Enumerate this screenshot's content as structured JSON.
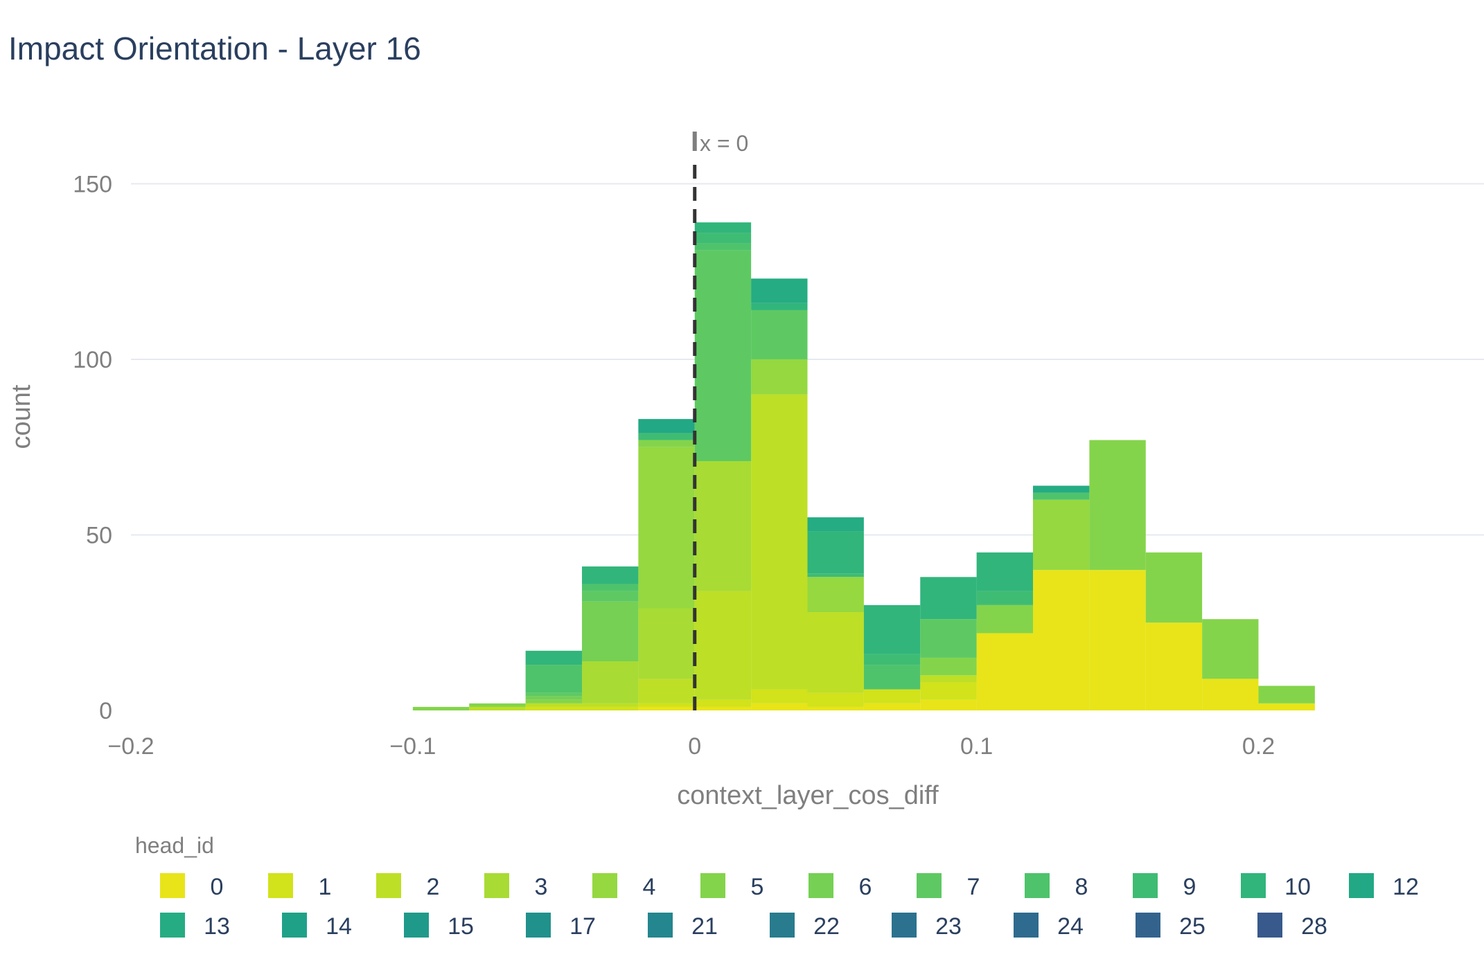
{
  "colors": {
    "palette": {
      "0": "#e8e419",
      "1": "#d2e21b",
      "2": "#bddf26",
      "3": "#a8db34",
      "4": "#95d840",
      "5": "#84d44b",
      "6": "#75d054",
      "7": "#5ec962",
      "8": "#4ec36b",
      "9": "#3fbc73",
      "10": "#31b57b",
      "12": "#22a884",
      "13": "#25ac82",
      "14": "#1fa188",
      "15": "#1f9a8a",
      "17": "#21918c",
      "21": "#24868e",
      "22": "#287c8e",
      "23": "#2c728e",
      "24": "#2f6b8e",
      "25": "#33638d",
      "28": "#38598c"
    },
    "grid": "#e6e9f0",
    "axis_text": "#7f7f7f",
    "title_text": "#2a3f5f",
    "refline": "#333333"
  },
  "chart_data": {
    "type": "bar",
    "title": "Impact Orientation - Layer 16",
    "xlabel": "context_layer_cos_diff",
    "ylabel": "count",
    "barmode": "stack",
    "bin_width": 0.02,
    "xlim": [
      -0.2,
      0.28
    ],
    "ylim": [
      0,
      170
    ],
    "x_ticks": [
      -0.2,
      -0.1,
      0,
      0.1,
      0.2
    ],
    "x_tick_labels": [
      "−0.2",
      "−0.1",
      "0",
      "0.1",
      "0.2"
    ],
    "y_ticks": [
      0,
      50,
      100,
      150
    ],
    "y_tick_labels": [
      "0",
      "50",
      "100",
      "150"
    ],
    "grid": true,
    "legend": {
      "title": "head_id",
      "position": "bottom"
    },
    "annotation": {
      "text": "x = 0",
      "x": 0
    },
    "bin_starts": [
      -0.2,
      -0.18,
      -0.16,
      -0.14,
      -0.12,
      -0.1,
      -0.08,
      -0.06,
      -0.04,
      -0.02,
      0,
      0.02,
      0.04,
      0.06,
      0.08,
      0.1,
      0.12,
      0.14,
      0.16,
      0.18,
      0.2,
      0.22,
      0.24,
      0.26
    ],
    "series": [
      {
        "name": "0",
        "values": [
          0,
          0,
          0,
          0,
          0,
          0,
          0,
          0,
          0,
          1,
          1,
          2,
          1,
          2,
          3,
          22,
          40,
          40,
          25,
          9,
          2,
          0,
          0,
          0
        ]
      },
      {
        "name": "1",
        "values": [
          0,
          0,
          0,
          0,
          0,
          0,
          0,
          1,
          1,
          1,
          2,
          4,
          4,
          4,
          5,
          0,
          0,
          0,
          0,
          0,
          0,
          0,
          0,
          0
        ]
      },
      {
        "name": "2",
        "values": [
          0,
          0,
          0,
          0,
          0,
          0,
          1,
          1,
          1,
          7,
          31,
          84,
          23,
          0,
          2,
          0,
          0,
          0,
          0,
          0,
          0,
          0,
          0,
          0
        ]
      },
      {
        "name": "3",
        "values": [
          0,
          0,
          0,
          0,
          0,
          0,
          0,
          0,
          12,
          20,
          37,
          0,
          0,
          0,
          0,
          0,
          0,
          0,
          0,
          0,
          0,
          0,
          0,
          0
        ]
      },
      {
        "name": "4",
        "values": [
          0,
          0,
          0,
          0,
          0,
          0,
          0,
          0,
          0,
          46,
          0,
          10,
          10,
          0,
          0,
          0,
          20,
          0,
          0,
          0,
          0,
          0,
          0,
          0
        ]
      },
      {
        "name": "5",
        "values": [
          0,
          0,
          0,
          0,
          0,
          1,
          1,
          1,
          0,
          2,
          0,
          0,
          0,
          0,
          5,
          8,
          0,
          37,
          20,
          17,
          5,
          0,
          0,
          0
        ]
      },
      {
        "name": "6",
        "values": [
          0,
          0,
          0,
          0,
          0,
          0,
          0,
          1,
          17,
          0,
          0,
          0,
          0,
          0,
          0,
          0,
          0,
          0,
          0,
          0,
          0,
          0,
          0,
          0
        ]
      },
      {
        "name": "7",
        "values": [
          0,
          0,
          0,
          0,
          0,
          0,
          0,
          1,
          3,
          0,
          60,
          14,
          0,
          0,
          11,
          0,
          0,
          0,
          0,
          0,
          0,
          0,
          0,
          0
        ]
      },
      {
        "name": "8",
        "values": [
          0,
          0,
          0,
          0,
          0,
          0,
          0,
          8,
          2,
          0,
          2,
          0,
          0,
          7,
          0,
          0,
          2,
          0,
          0,
          0,
          0,
          0,
          0,
          0
        ]
      },
      {
        "name": "9",
        "values": [
          0,
          0,
          0,
          0,
          0,
          0,
          0,
          0,
          0,
          2,
          3,
          0,
          1,
          3,
          0,
          4,
          0,
          0,
          0,
          0,
          0,
          0,
          0,
          0
        ]
      },
      {
        "name": "10",
        "values": [
          0,
          0,
          0,
          0,
          0,
          0,
          0,
          4,
          5,
          0,
          3,
          2,
          12,
          14,
          12,
          11,
          0,
          0,
          0,
          0,
          0,
          0,
          0,
          0
        ]
      },
      {
        "name": "12",
        "values": [
          0,
          0,
          0,
          0,
          0,
          0,
          0,
          0,
          0,
          4,
          0,
          0,
          0,
          0,
          0,
          0,
          0,
          0,
          0,
          0,
          0,
          0,
          0,
          0
        ]
      },
      {
        "name": "13",
        "values": [
          0,
          0,
          0,
          0,
          0,
          0,
          0,
          0,
          0,
          0,
          0,
          7,
          4,
          0,
          0,
          0,
          2,
          0,
          0,
          0,
          0,
          0,
          0,
          0
        ]
      },
      {
        "name": "14",
        "values": [
          0,
          0,
          0,
          0,
          0,
          0,
          0,
          0,
          0,
          0,
          0,
          0,
          0,
          0,
          0,
          0,
          0,
          0,
          0,
          0,
          0,
          0,
          0,
          0
        ]
      },
      {
        "name": "15",
        "values": [
          0,
          0,
          0,
          0,
          0,
          0,
          0,
          0,
          0,
          0,
          0,
          0,
          0,
          0,
          0,
          0,
          0,
          0,
          0,
          0,
          0,
          0,
          0,
          0
        ]
      },
      {
        "name": "17",
        "values": [
          0,
          0,
          0,
          0,
          0,
          0,
          0,
          0,
          0,
          0,
          0,
          0,
          0,
          0,
          0,
          0,
          0,
          0,
          0,
          0,
          0,
          0,
          0,
          0
        ]
      },
      {
        "name": "21",
        "values": [
          0,
          0,
          0,
          0,
          0,
          0,
          0,
          0,
          0,
          0,
          0,
          0,
          0,
          0,
          0,
          0,
          0,
          0,
          0,
          0,
          0,
          0,
          0,
          0
        ]
      },
      {
        "name": "22",
        "values": [
          0,
          0,
          0,
          0,
          0,
          0,
          0,
          0,
          0,
          0,
          0,
          0,
          0,
          0,
          0,
          0,
          0,
          0,
          0,
          0,
          0,
          0,
          0,
          0
        ]
      },
      {
        "name": "23",
        "values": [
          0,
          0,
          0,
          0,
          0,
          0,
          0,
          0,
          0,
          0,
          0,
          0,
          0,
          0,
          0,
          0,
          0,
          0,
          0,
          0,
          0,
          0,
          0,
          0
        ]
      },
      {
        "name": "24",
        "values": [
          0,
          0,
          0,
          0,
          0,
          0,
          0,
          0,
          0,
          0,
          0,
          0,
          0,
          0,
          0,
          0,
          0,
          0,
          0,
          0,
          0,
          0,
          0,
          0
        ]
      },
      {
        "name": "25",
        "values": [
          0,
          0,
          0,
          0,
          0,
          0,
          0,
          0,
          0,
          0,
          0,
          0,
          0,
          0,
          0,
          0,
          0,
          0,
          0,
          0,
          0,
          0,
          0,
          0
        ]
      },
      {
        "name": "28",
        "values": [
          0,
          0,
          0,
          0,
          0,
          0,
          0,
          0,
          0,
          0,
          0,
          0,
          0,
          0,
          0,
          0,
          0,
          0,
          0,
          0,
          0,
          0,
          0,
          0
        ]
      }
    ]
  }
}
